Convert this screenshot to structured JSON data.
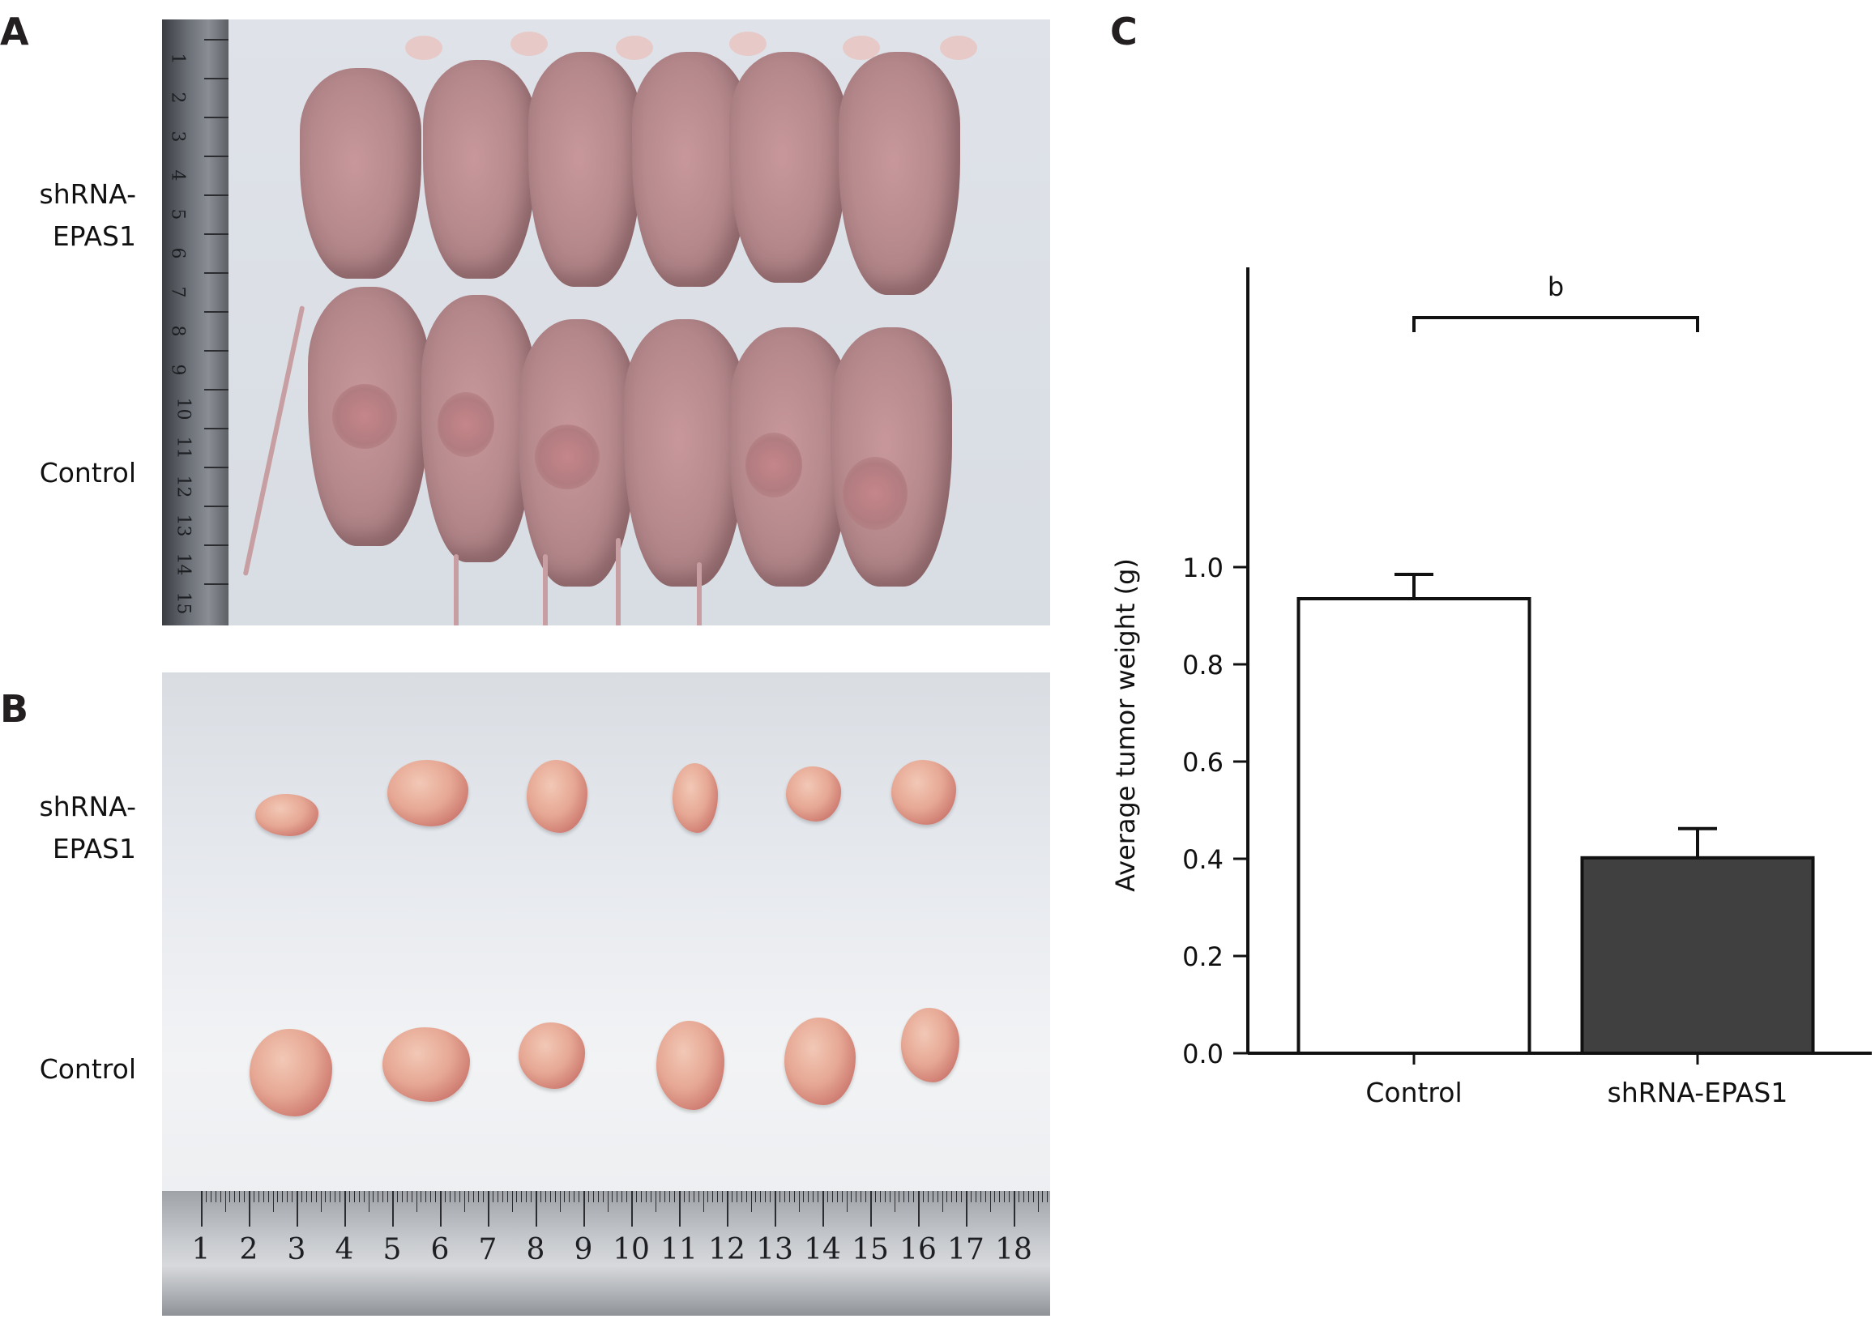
{
  "panels": {
    "a": {
      "letter": "A",
      "rows": [
        {
          "line1": "shRNA-",
          "line2": "EPAS1"
        },
        {
          "line1": "Control"
        }
      ],
      "ruler_numbers": [
        "1",
        "2",
        "3",
        "4",
        "5",
        "6",
        "7",
        "8",
        "9",
        "10",
        "11",
        "12",
        "13",
        "14",
        "15"
      ]
    },
    "b": {
      "letter": "B",
      "rows": [
        {
          "line1": "shRNA-",
          "line2": "EPAS1"
        },
        {
          "line1": "Control"
        }
      ],
      "ruler_numbers": [
        "1",
        "2",
        "3",
        "4",
        "5",
        "6",
        "7",
        "8",
        "9",
        "10",
        "11",
        "12",
        "13",
        "14",
        "15",
        "16",
        "17",
        "18",
        "1"
      ]
    },
    "c": {
      "letter": "C"
    }
  },
  "colors": {
    "control_bar": "#ffffff",
    "shrna_bar": "#404040",
    "axis": "#111111"
  },
  "chart_data": {
    "type": "bar",
    "categories": [
      "Control",
      "shRNA-EPAS1"
    ],
    "values": [
      0.935,
      0.402
    ],
    "errors": [
      0.05,
      0.06
    ],
    "ylabel": "Average tumor weight (g)",
    "xlabel": "",
    "ylim": [
      0,
      1.0
    ],
    "yticks": [
      "0.0",
      "0.2",
      "0.4",
      "0.6",
      "0.8",
      "1.0"
    ],
    "significance": {
      "between": [
        "Control",
        "shRNA-EPAS1"
      ],
      "label": "b"
    }
  }
}
